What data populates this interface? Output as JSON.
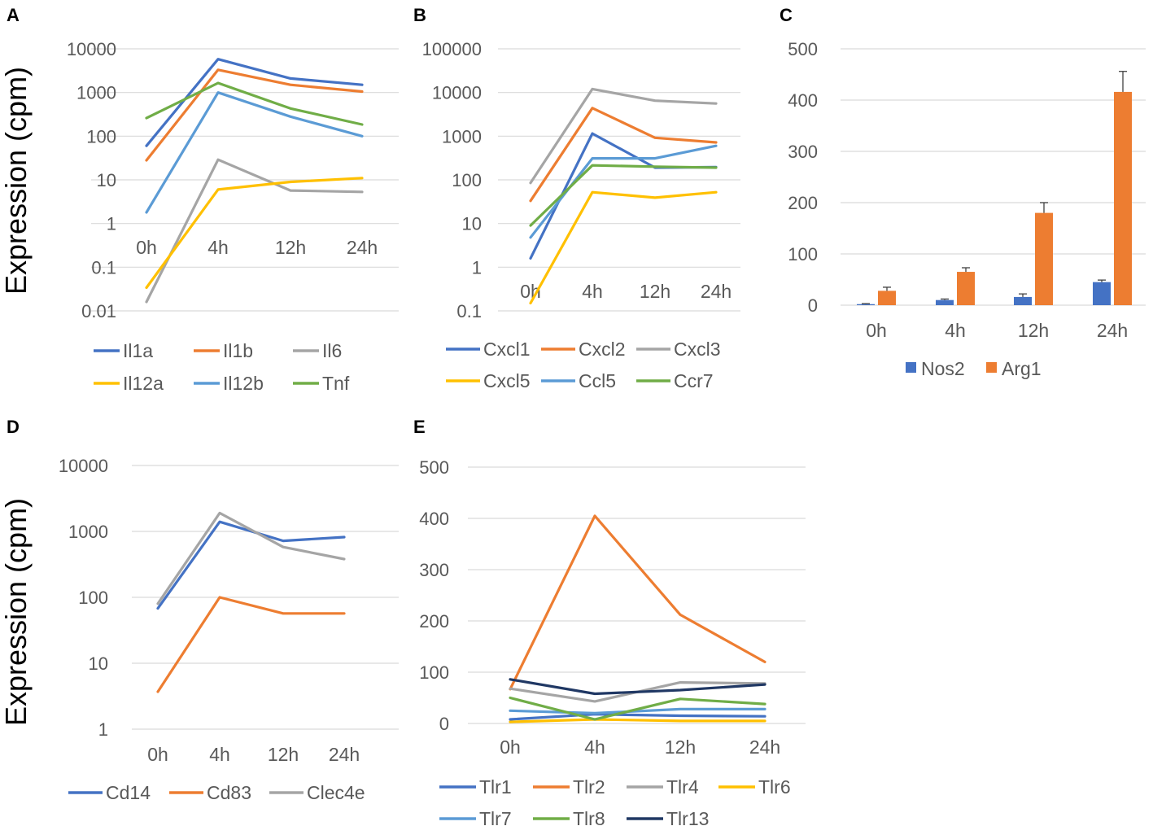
{
  "figure": {
    "y_axis_label": "Expression (cpm)"
  },
  "chart_data": [
    {
      "panel": "A",
      "type": "line",
      "yscale": "log",
      "ylim": [
        0.01,
        10000
      ],
      "yticks": [
        "0.01",
        "0.1",
        "1",
        "10",
        "100",
        "1000",
        "10000"
      ],
      "ylabel": "Expression (cpm)",
      "categories": [
        "0h",
        "4h",
        "12h",
        "24h"
      ],
      "legend_position": "bottom",
      "series": [
        {
          "name": "Il1a",
          "color": "#4472C4",
          "values": [
            60,
            5800,
            2100,
            1500
          ]
        },
        {
          "name": "Il1b",
          "color": "#ED7D31",
          "values": [
            28,
            3300,
            1500,
            1050
          ]
        },
        {
          "name": "Il6",
          "color": "#A5A5A5",
          "values": [
            0.016,
            29,
            5.7,
            5.3
          ]
        },
        {
          "name": "Il12a",
          "color": "#FFC000",
          "values": [
            0.034,
            6,
            9,
            11
          ]
        },
        {
          "name": "Il12b",
          "color": "#5B9BD5",
          "values": [
            1.8,
            1000,
            280,
            100
          ]
        },
        {
          "name": "Tnf",
          "color": "#70AD47",
          "values": [
            260,
            1650,
            430,
            185
          ]
        }
      ]
    },
    {
      "panel": "B",
      "type": "line",
      "yscale": "log",
      "ylim": [
        0.1,
        100000
      ],
      "yticks": [
        "0.1",
        "1",
        "10",
        "100",
        "1000",
        "10000",
        "100000"
      ],
      "categories": [
        "0h",
        "4h",
        "12h",
        "24h"
      ],
      "legend_position": "bottom",
      "series": [
        {
          "name": "Cxcl1",
          "color": "#4472C4",
          "values": [
            1.6,
            1150,
            190,
            195
          ]
        },
        {
          "name": "Cxcl2",
          "color": "#ED7D31",
          "values": [
            33,
            4400,
            920,
            720
          ]
        },
        {
          "name": "Cxcl3",
          "color": "#A5A5A5",
          "values": [
            85,
            12000,
            6500,
            5600
          ]
        },
        {
          "name": "Cxcl5",
          "color": "#FFC000",
          "values": [
            0.15,
            52,
            39,
            52
          ]
        },
        {
          "name": "Ccl5",
          "color": "#5B9BD5",
          "values": [
            4.8,
            310,
            310,
            600
          ]
        },
        {
          "name": "Ccr7",
          "color": "#70AD47",
          "values": [
            9,
            215,
            200,
            190
          ]
        }
      ]
    },
    {
      "panel": "C",
      "type": "bar",
      "ylim": [
        0,
        500
      ],
      "yticks": [
        "0",
        "100",
        "200",
        "300",
        "400",
        "500"
      ],
      "categories": [
        "0h",
        "4h",
        "12h",
        "24h"
      ],
      "legend_position": "bottom",
      "series": [
        {
          "name": "Nos2",
          "color": "#4472C4",
          "values": [
            2,
            10,
            16,
            45
          ],
          "errors": [
            1,
            2,
            6,
            4
          ]
        },
        {
          "name": "Arg1",
          "color": "#ED7D31",
          "values": [
            28,
            65,
            180,
            416
          ],
          "errors": [
            7,
            8,
            20,
            40
          ]
        }
      ]
    },
    {
      "panel": "D",
      "type": "line",
      "yscale": "log",
      "ylim": [
        1,
        10000
      ],
      "yticks": [
        "1",
        "10",
        "100",
        "1000",
        "10000"
      ],
      "ylabel": "Expression (cpm)",
      "categories": [
        "0h",
        "4h",
        "12h",
        "24h"
      ],
      "legend_position": "bottom",
      "series": [
        {
          "name": "Cd14",
          "color": "#4472C4",
          "values": [
            68,
            1400,
            720,
            820
          ]
        },
        {
          "name": "Cd83",
          "color": "#ED7D31",
          "values": [
            3.7,
            100,
            57,
            57
          ]
        },
        {
          "name": "Clec4e",
          "color": "#A5A5A5",
          "values": [
            80,
            1900,
            580,
            380
          ]
        }
      ]
    },
    {
      "panel": "E",
      "type": "line",
      "ylim": [
        0,
        500
      ],
      "yticks": [
        "0",
        "100",
        "200",
        "300",
        "400",
        "500"
      ],
      "categories": [
        "0h",
        "4h",
        "12h",
        "24h"
      ],
      "legend_position": "bottom",
      "series": [
        {
          "name": "Tlr1",
          "color": "#4472C4",
          "values": [
            8,
            18,
            15,
            14
          ]
        },
        {
          "name": "Tlr2",
          "color": "#ED7D31",
          "values": [
            67,
            405,
            212,
            120
          ]
        },
        {
          "name": "Tlr4",
          "color": "#A5A5A5",
          "values": [
            68,
            43,
            80,
            78
          ]
        },
        {
          "name": "Tlr6",
          "color": "#FFC000",
          "values": [
            3,
            8,
            5,
            5
          ]
        },
        {
          "name": "Tlr7",
          "color": "#5B9BD5",
          "values": [
            25,
            20,
            28,
            28
          ]
        },
        {
          "name": "Tlr8",
          "color": "#70AD47",
          "values": [
            50,
            8,
            48,
            38
          ]
        },
        {
          "name": "Tlr13",
          "color": "#203864",
          "values": [
            86,
            58,
            65,
            76
          ]
        }
      ]
    }
  ]
}
